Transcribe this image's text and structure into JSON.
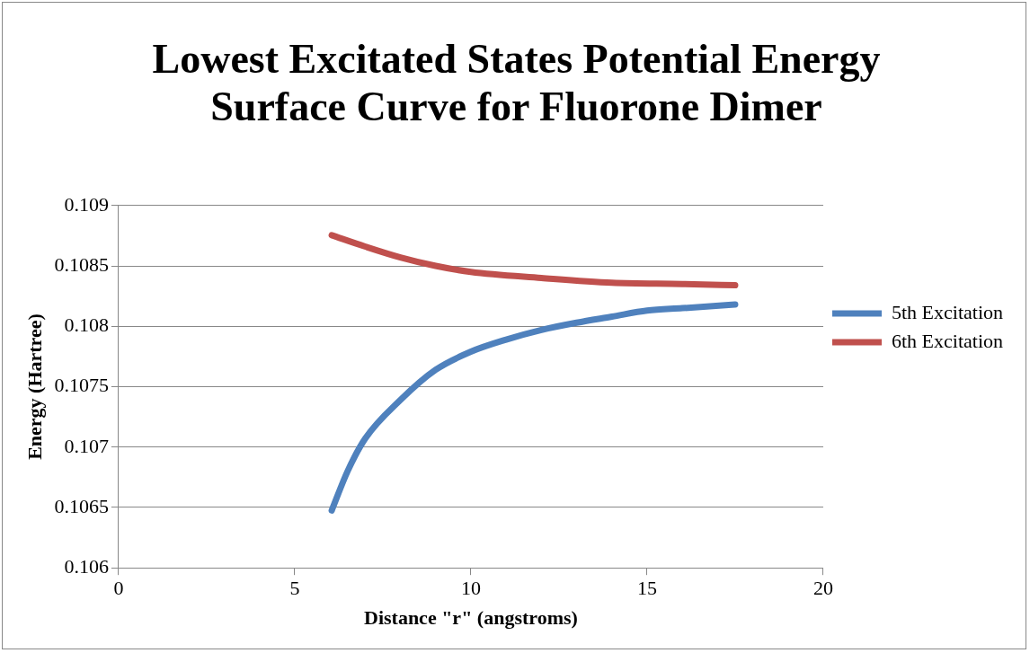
{
  "chart_data": {
    "type": "line",
    "title": "Lowest Excitated States Potential Energy Surface Curve for Fluorone Dimer",
    "xlabel": "Distance \"r\" (angstroms)",
    "ylabel": "Energy (Hartree)",
    "xlim": [
      0,
      20
    ],
    "xticks": [
      0,
      5,
      10,
      15,
      20
    ],
    "ylim": [
      0.106,
      0.109
    ],
    "yticks": [
      0.106,
      0.1065,
      0.107,
      0.1075,
      0.108,
      0.1085,
      0.109
    ],
    "grid": "y",
    "legend": "right",
    "marker": "none",
    "line_style": "solid",
    "series": [
      {
        "name": "5th Excitation",
        "color": "#4f81bd",
        "x": [
          6.05,
          6.5,
          7,
          8,
          9,
          10,
          11,
          12,
          13,
          14,
          15,
          16,
          17.5
        ],
        "values": [
          0.106475,
          0.1068,
          0.10707,
          0.10739,
          0.10764,
          0.10779,
          0.10789,
          0.10797,
          0.10803,
          0.10808,
          0.10813,
          0.10815,
          0.10818
        ]
      },
      {
        "name": "6th Excitation",
        "color": "#c0504d",
        "x": [
          6.05,
          7,
          8,
          9,
          10,
          12,
          14,
          16,
          17.5
        ],
        "values": [
          0.108754,
          0.10866,
          0.10857,
          0.1085,
          0.10845,
          0.1084,
          0.10836,
          0.10835,
          0.10834
        ]
      }
    ]
  }
}
